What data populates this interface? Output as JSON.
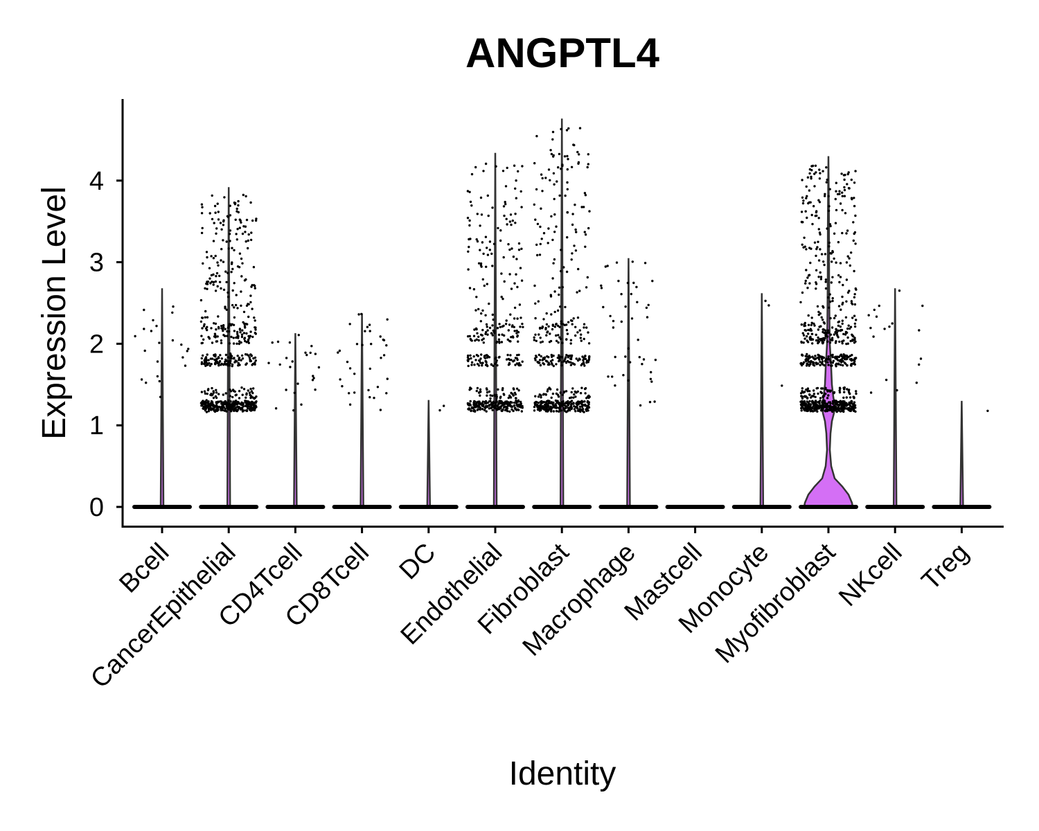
{
  "chart_data": {
    "type": "violin",
    "title": "ANGPTL4",
    "xlabel": "Identity",
    "ylabel": "Expression Level",
    "ylim": [
      -0.25,
      5.0
    ],
    "yticks": [
      0,
      1,
      2,
      3,
      4
    ],
    "grid": false,
    "legend": "none",
    "fill_color": "#d46ff5",
    "outline_color": "#333333",
    "point_color": "#000000",
    "categories": [
      "Bcell",
      "CancerEpithelial",
      "CD4Tcell",
      "CD8Tcell",
      "DC",
      "Endothelial",
      "Fibroblast",
      "Macrophage",
      "Mastcell",
      "Monocyte",
      "Myofibroblast",
      "NKcell",
      "Treg"
    ],
    "max_expression": [
      2.68,
      3.92,
      2.13,
      2.37,
      1.31,
      4.34,
      4.76,
      3.05,
      0.0,
      2.62,
      4.3,
      2.68,
      1.3
    ],
    "nonzero_points": [
      22,
      700,
      25,
      35,
      2,
      500,
      550,
      45,
      0,
      3,
      900,
      18,
      1
    ]
  }
}
